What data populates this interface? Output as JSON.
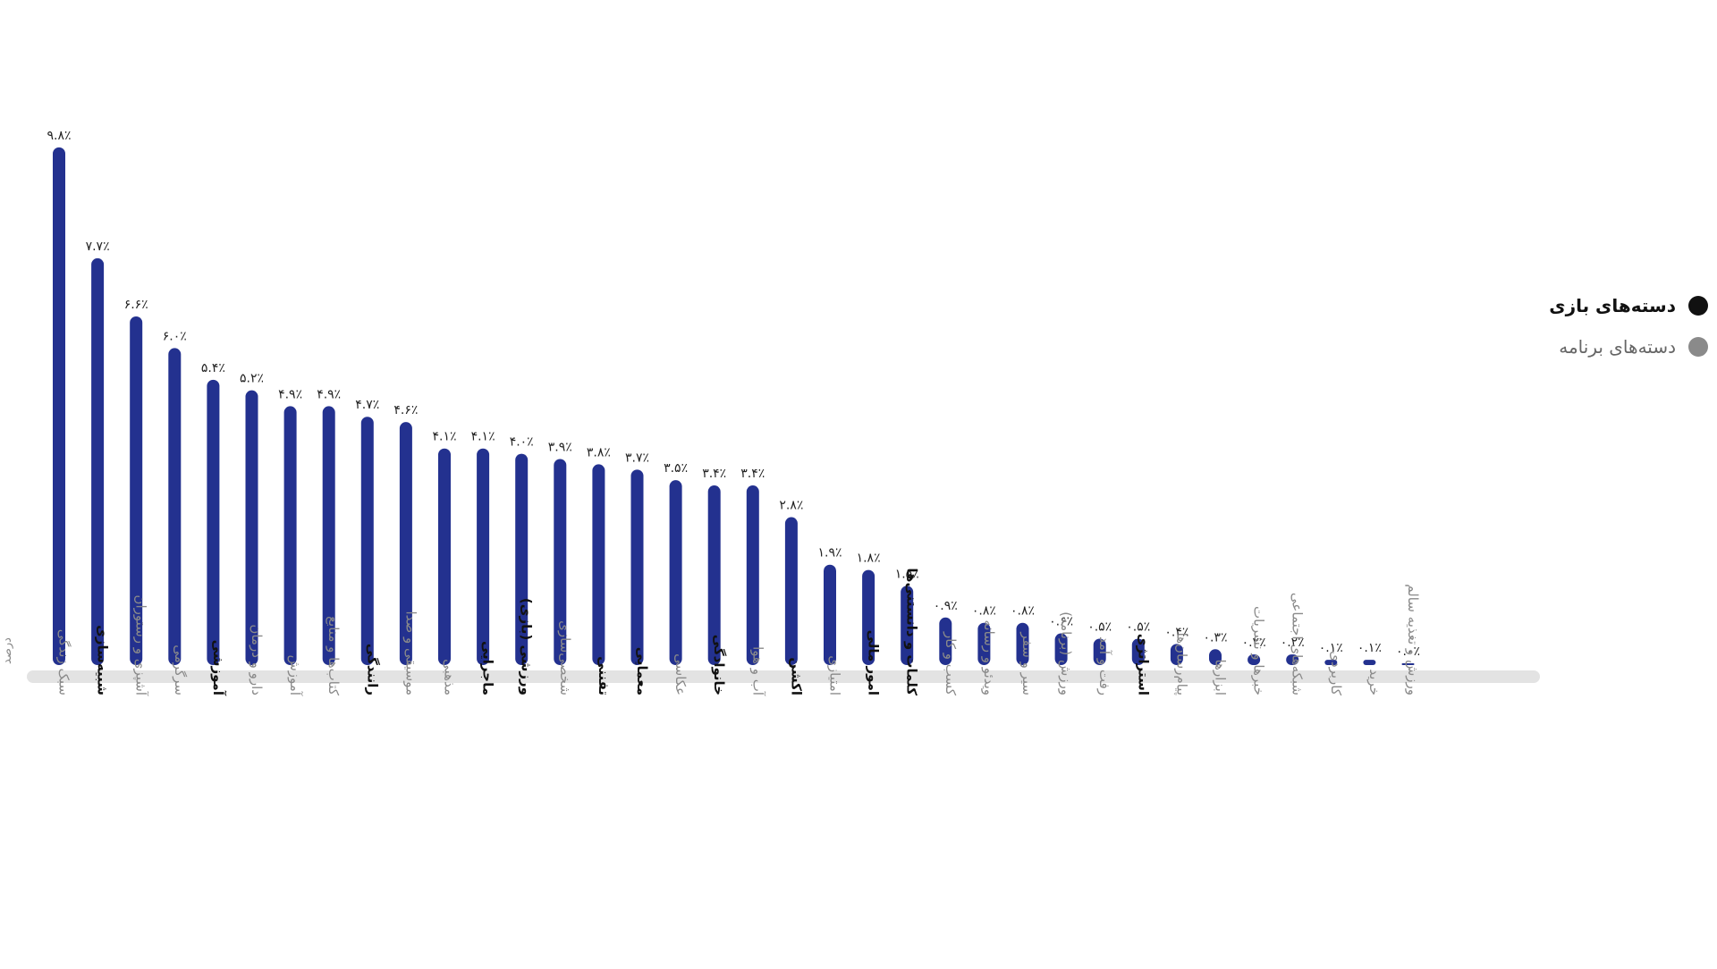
{
  "chart_data": {
    "type": "bar",
    "ylabel": "درصد",
    "ylim": [
      0,
      10
    ],
    "grid": false,
    "legend_position": "right",
    "legend": [
      {
        "name": "دسته‌های بازی",
        "color": "#111111"
      },
      {
        "name": "دسته‌های برنامه",
        "color": "#8a8a8a"
      }
    ],
    "series_color": "#23318f",
    "axis_color": "#e3e3e3",
    "categories": [
      {
        "label": "سبک زندگی",
        "group": "app",
        "value_label": "۹.۸٪"
      },
      {
        "label": "شبیه‌سازی",
        "group": "game",
        "value_label": "۷.۷٪"
      },
      {
        "label": "آشپزی و رستوران",
        "group": "app",
        "value_label": "۶.۶٪"
      },
      {
        "label": "سرگرمی",
        "group": "app",
        "value_label": "۶.۰٪"
      },
      {
        "label": "آموزشی",
        "group": "game",
        "value_label": "۵.۴٪"
      },
      {
        "label": "دارو و درمان",
        "group": "app",
        "value_label": "۵.۲٪"
      },
      {
        "label": "آموزش",
        "group": "app",
        "value_label": "۴.۹٪"
      },
      {
        "label": "کتاب‌ها و منابع",
        "group": "app",
        "value_label": "۴.۹٪"
      },
      {
        "label": "رانندگی",
        "group": "game",
        "value_label": "۴.۷٪"
      },
      {
        "label": "موسیقی و صدا",
        "group": "app",
        "value_label": "۴.۶٪"
      },
      {
        "label": "مذهبی",
        "group": "app",
        "value_label": "۴.۱٪"
      },
      {
        "label": "ماجرایی",
        "group": "game",
        "value_label": "۴.۱٪"
      },
      {
        "label": "ورزشی (بازی)",
        "group": "game",
        "value_label": "۴.۰٪"
      },
      {
        "label": "شخصی‌سازی",
        "group": "app",
        "value_label": "۳.۹٪"
      },
      {
        "label": "تفننی",
        "group": "game",
        "value_label": "۳.۸٪"
      },
      {
        "label": "معمایی",
        "group": "game",
        "value_label": "۳.۷٪"
      },
      {
        "label": "عکاسی",
        "group": "app",
        "value_label": "۳.۵٪"
      },
      {
        "label": "خانوادگی",
        "group": "game",
        "value_label": "۳.۴٪"
      },
      {
        "label": "آب و هوا",
        "group": "app",
        "value_label": "۳.۴٪"
      },
      {
        "label": "اکشن",
        "group": "game",
        "value_label": "۲.۸٪"
      },
      {
        "label": "امتیازی",
        "group": "app",
        "value_label": "۱.۹٪"
      },
      {
        "label": "امور مالی",
        "group": "game",
        "value_label": "۱.۸٪"
      },
      {
        "label": "کلمات و دانستنی‌ها",
        "group": "game",
        "value_label": "۱.۵٪"
      },
      {
        "label": "کسب و کار",
        "group": "app",
        "value_label": "۰.۹٪"
      },
      {
        "label": "ویدئو و رسانه",
        "group": "app",
        "value_label": "۰.۸٪"
      },
      {
        "label": "سیر و سفر",
        "group": "app",
        "value_label": "۰.۸٪"
      },
      {
        "label": "ورزش (برنامه)",
        "group": "app",
        "value_label": "۰.۶٪"
      },
      {
        "label": "رفت و آمد",
        "group": "app",
        "value_label": "۰.۵٪"
      },
      {
        "label": "استراتژی",
        "group": "game",
        "value_label": "۰.۵٪"
      },
      {
        "label": "پیام‌رسان‌ها",
        "group": "app",
        "value_label": "۰.۴٪"
      },
      {
        "label": "ابزارها",
        "group": "app",
        "value_label": "۰.۳٪"
      },
      {
        "label": "خبرها و نشریات",
        "group": "app",
        "value_label": "۰.۲٪"
      },
      {
        "label": "شبکه‌های اجتماعی",
        "group": "app",
        "value_label": "۰.۲٪"
      },
      {
        "label": "کاربردی",
        "group": "app",
        "value_label": "۰.۱٪"
      },
      {
        "label": "خرید",
        "group": "app",
        "value_label": "۰.۱٪"
      },
      {
        "label": "ورزش و تغذیه سالم",
        "group": "app",
        "value_label": "۰.۰٪"
      }
    ],
    "values": [
      9.8,
      7.7,
      6.6,
      6.0,
      5.4,
      5.2,
      4.9,
      4.9,
      4.7,
      4.6,
      4.1,
      4.1,
      4.0,
      3.9,
      3.8,
      3.7,
      3.5,
      3.4,
      3.4,
      2.8,
      1.9,
      1.8,
      1.5,
      0.9,
      0.8,
      0.8,
      0.6,
      0.5,
      0.5,
      0.4,
      0.3,
      0.2,
      0.2,
      0.1,
      0.1,
      0.0
    ]
  }
}
